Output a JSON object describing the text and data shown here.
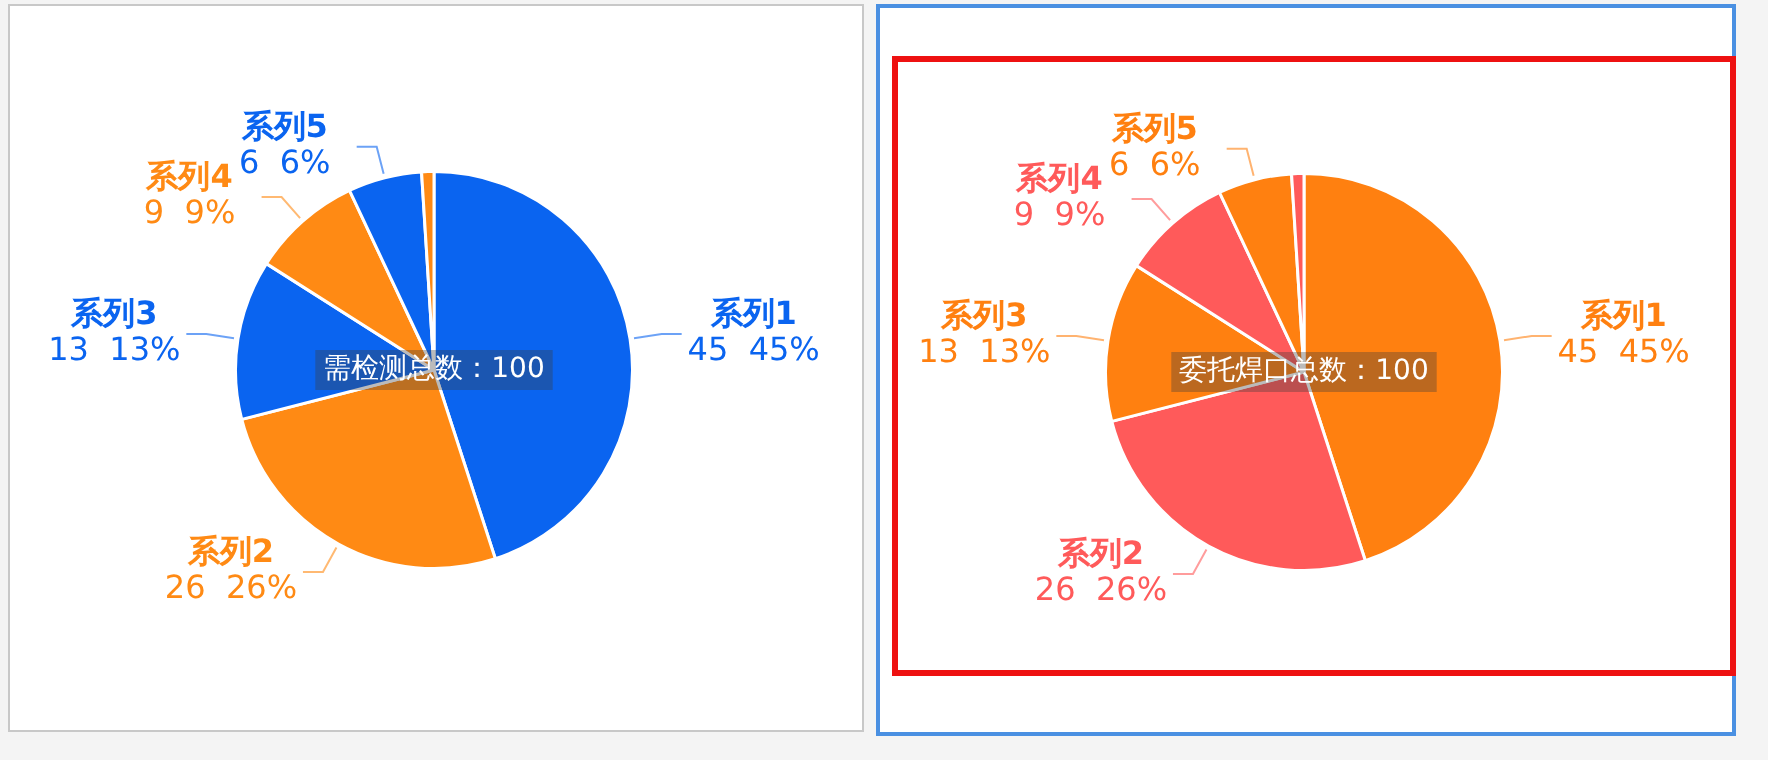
{
  "chart_data": [
    {
      "type": "pie",
      "categories": [
        "系列1",
        "系列2",
        "系列3",
        "系列4",
        "系列5",
        null
      ],
      "values": [
        45,
        26,
        13,
        9,
        6,
        1
      ],
      "colors": [
        "#0a64f0",
        "#ff8a14",
        "#0a64f0",
        "#ff8a14",
        "#0a64f0",
        "#ff8a14"
      ],
      "value_labels": [
        "45  45%",
        "26  26%",
        "13  13%",
        "9  9%",
        "6  6%",
        null
      ],
      "annotations": [
        "需检测总数：100"
      ],
      "legend": false
    },
    {
      "type": "pie",
      "categories": [
        "系列1",
        "系列2",
        "系列3",
        "系列4",
        "系列5",
        null
      ],
      "values": [
        45,
        26,
        13,
        9,
        6,
        1
      ],
      "colors": [
        "#ff8010",
        "#ff5a5a",
        "#ff8010",
        "#ff5a5a",
        "#ff8010",
        "#ff5a5a"
      ],
      "value_labels": [
        "45  45%",
        "26  26%",
        "13  13%",
        "9  9%",
        "6  6%",
        null
      ],
      "annotations": [
        "委托焊口总数：100"
      ],
      "legend": false
    }
  ]
}
